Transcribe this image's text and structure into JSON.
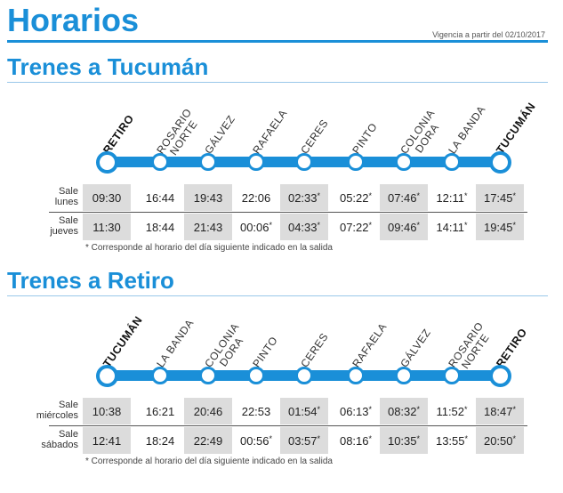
{
  "header": {
    "title": "Horarios",
    "vigencia": "Vigencia a partir del 02/10/2017"
  },
  "colors": {
    "accent": "#1a8fd8",
    "shade": "#dcdcdc"
  },
  "sections": [
    {
      "title": "Trenes a Tucumán",
      "stations": [
        {
          "l1": "RETIRO",
          "l2": "",
          "bold": true
        },
        {
          "l1": "ROSARIO",
          "l2": "NORTE",
          "bold": false
        },
        {
          "l1": "GÁLVEZ",
          "l2": "",
          "bold": false
        },
        {
          "l1": "RAFAELA",
          "l2": "",
          "bold": false
        },
        {
          "l1": "CERES",
          "l2": "",
          "bold": false
        },
        {
          "l1": "PINTO",
          "l2": "",
          "bold": false
        },
        {
          "l1": "COLONIA",
          "l2": "DORA",
          "bold": false
        },
        {
          "l1": "LA BANDA",
          "l2": "",
          "bold": false
        },
        {
          "l1": "TUCUMÁN",
          "l2": "",
          "bold": true
        }
      ],
      "rows": [
        {
          "label1": "Sale",
          "label2": "lunes",
          "times": [
            "09:30",
            "16:44",
            "19:43",
            "22:06",
            "02:33",
            "05:22",
            "07:46",
            "12:11",
            "17:45"
          ],
          "marks": [
            "",
            "",
            "",
            "",
            "*",
            "*",
            "*",
            "*",
            "*"
          ]
        },
        {
          "label1": "Sale",
          "label2": "jueves",
          "times": [
            "11:30",
            "18:44",
            "21:43",
            "00:06",
            "04:33",
            "07:22",
            "09:46",
            "14:11",
            "19:45"
          ],
          "marks": [
            "",
            "",
            "",
            "*",
            "*",
            "*",
            "*",
            "*",
            "*"
          ]
        }
      ],
      "note": "* Corresponde al horario del día siguiente indicado en la salida"
    },
    {
      "title": "Trenes a Retiro",
      "stations": [
        {
          "l1": "TUCUMÁN",
          "l2": "",
          "bold": true
        },
        {
          "l1": "LA BANDA",
          "l2": "",
          "bold": false
        },
        {
          "l1": "COLONIA",
          "l2": "DORA",
          "bold": false
        },
        {
          "l1": "PINTO",
          "l2": "",
          "bold": false
        },
        {
          "l1": "CERES",
          "l2": "",
          "bold": false
        },
        {
          "l1": "RAFAELA",
          "l2": "",
          "bold": false
        },
        {
          "l1": "GÁLVEZ",
          "l2": "",
          "bold": false
        },
        {
          "l1": "ROSARIO",
          "l2": "NORTE",
          "bold": false
        },
        {
          "l1": "RETIRO",
          "l2": "",
          "bold": true
        }
      ],
      "rows": [
        {
          "label1": "Sale",
          "label2": "miércoles",
          "times": [
            "10:38",
            "16:21",
            "20:46",
            "22:53",
            "01:54",
            "06:13",
            "08:32",
            "11:52",
            "18:47"
          ],
          "marks": [
            "",
            "",
            "",
            "",
            "*",
            "*",
            "*",
            "*",
            "*"
          ]
        },
        {
          "label1": "Sale",
          "label2": "sábados",
          "times": [
            "12:41",
            "18:24",
            "22:49",
            "00:56",
            "03:57",
            "08:16",
            "10:35",
            "13:55",
            "20:50"
          ],
          "marks": [
            "",
            "",
            "",
            "*",
            "*",
            "*",
            "*",
            "*",
            "*"
          ]
        }
      ],
      "note": "* Corresponde al horario del día siguiente indicado en la salida"
    }
  ]
}
